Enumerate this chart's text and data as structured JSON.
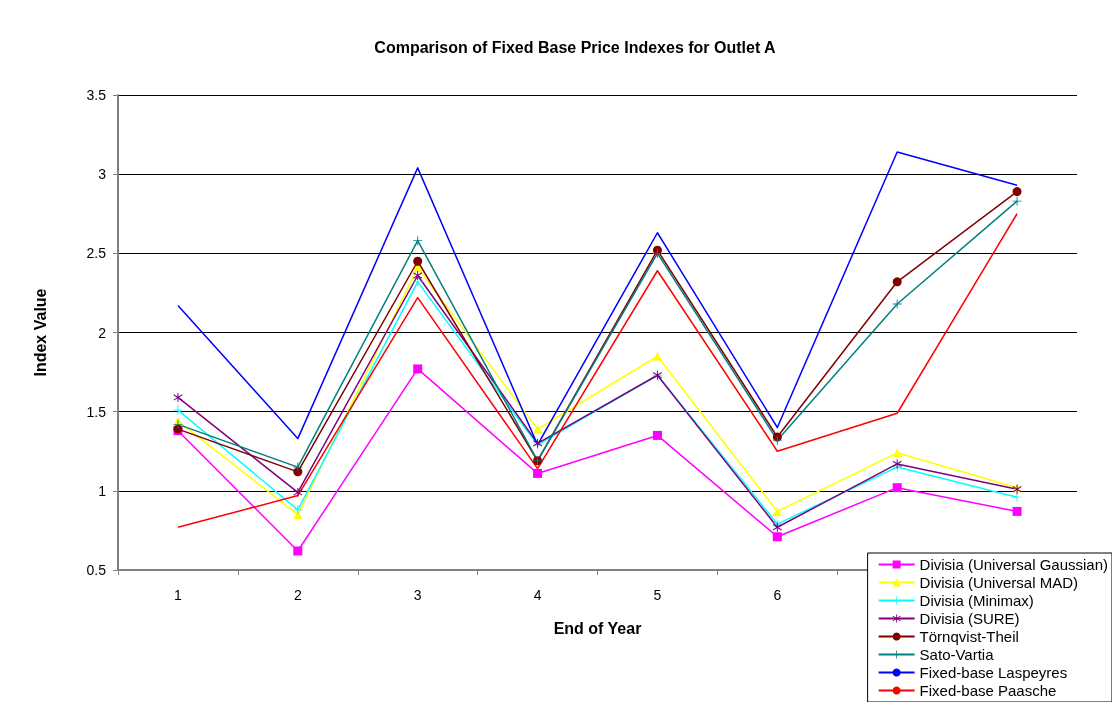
{
  "chart_data": {
    "type": "line",
    "title": "Comparison of Fixed Base Price Indexes for Outlet A",
    "xlabel": "End of Year",
    "ylabel": "Index Value",
    "categories": [
      "1",
      "2",
      "3",
      "4",
      "5",
      "6",
      null,
      null
    ],
    "ylim": [
      0.5,
      3.5
    ],
    "yticks": [
      0.5,
      1,
      1.5,
      2,
      2.5,
      3,
      3.5
    ],
    "grid": "y",
    "legend": "bottom right",
    "series": [
      {
        "name": "Divisia (Universal Gaussian)",
        "color": "#ff00ff",
        "marker": "square",
        "values": [
          1.38,
          0.62,
          1.77,
          1.11,
          1.35,
          0.71,
          1.02,
          0.87
        ]
      },
      {
        "name": "Divisia (Universal MAD)",
        "color": "#ffff00",
        "marker": "triangle",
        "values": [
          1.44,
          0.85,
          2.41,
          1.39,
          1.85,
          0.87,
          1.24,
          1.02
        ]
      },
      {
        "name": "Divisia (Minimax)",
        "color": "#00ffff",
        "marker": "cross",
        "values": [
          1.51,
          0.88,
          2.32,
          1.29,
          1.73,
          0.79,
          1.15,
          0.96
        ]
      },
      {
        "name": "Divisia (SURE)",
        "color": "#800080",
        "marker": "star",
        "values": [
          1.59,
          0.99,
          2.36,
          1.3,
          1.73,
          0.77,
          1.17,
          1.01
        ]
      },
      {
        "name": "Törnqvist-Theil",
        "color": "#800000",
        "marker": "circle",
        "values": [
          1.39,
          1.12,
          2.45,
          1.19,
          2.52,
          1.34,
          2.32,
          2.89
        ]
      },
      {
        "name": "Sato-Vartia",
        "color": "#008080",
        "marker": "cross",
        "values": [
          1.42,
          1.15,
          2.58,
          1.19,
          2.5,
          1.32,
          2.18,
          2.83
        ]
      },
      {
        "name": "Fixed-base Laspeyres",
        "color": "#0000ff",
        "marker": "none",
        "values": [
          2.17,
          1.33,
          3.04,
          1.29,
          2.63,
          1.4,
          3.14,
          2.93
        ]
      },
      {
        "name": "Fixed-base Paasche",
        "color": "#ff0000",
        "marker": "none",
        "values": [
          0.77,
          0.97,
          2.22,
          1.14,
          2.39,
          1.25,
          1.49,
          2.75
        ]
      }
    ]
  }
}
